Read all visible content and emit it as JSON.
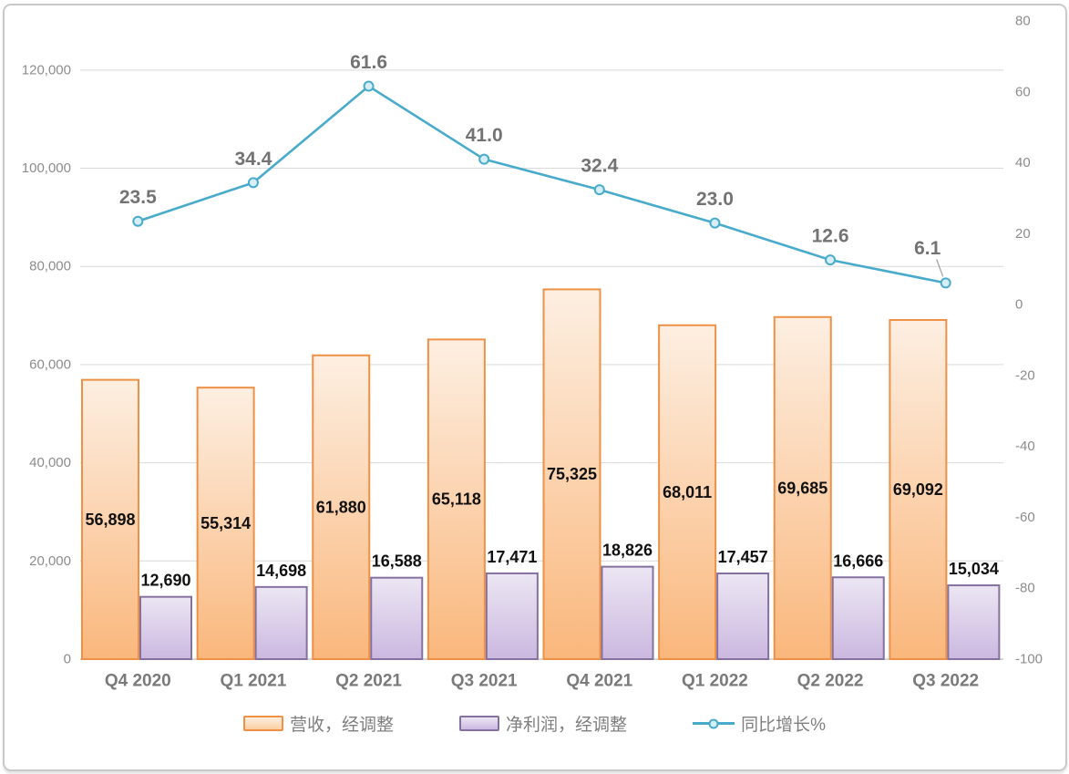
{
  "chart_data": {
    "type": "combo",
    "title": "",
    "categories": [
      "Q4 2020",
      "Q1 2021",
      "Q2 2021",
      "Q3 2021",
      "Q4 2021",
      "Q1 2022",
      "Q2 2022",
      "Q3 2022"
    ],
    "series": [
      {
        "name": "营收，经调整",
        "type": "bar",
        "axis": "left",
        "values": [
          56898,
          55314,
          61880,
          65118,
          75325,
          68011,
          69685,
          69092
        ],
        "labels": [
          "56,898",
          "55,314",
          "61,880",
          "65,118",
          "75,325",
          "68,011",
          "69,685",
          "69,092"
        ],
        "label_position": "center"
      },
      {
        "name": "净利润，经调整",
        "type": "bar",
        "axis": "left",
        "values": [
          12690,
          14698,
          16588,
          17471,
          18826,
          17457,
          16666,
          15034
        ],
        "labels": [
          "12,690",
          "14,698",
          "16,588",
          "17,471",
          "18,826",
          "17,457",
          "16,666",
          "15,034"
        ],
        "label_position": "outside-end"
      },
      {
        "name": "同比增长%",
        "type": "line",
        "axis": "right",
        "values": [
          23.5,
          34.4,
          61.6,
          41.0,
          32.4,
          23.0,
          12.6,
          6.1
        ],
        "labels": [
          "23.5",
          "34.4",
          "61.6",
          "41.0",
          "32.4",
          "23.0",
          "12.6",
          "6.1"
        ],
        "label_position": "above",
        "last_label_leader": true
      }
    ],
    "left_axis": {
      "min": 0,
      "max": 130000,
      "ticks": [
        {
          "v": 0,
          "label": "0"
        },
        {
          "v": 20000,
          "label": "20,000"
        },
        {
          "v": 40000,
          "label": "40,000"
        },
        {
          "v": 60000,
          "label": "60,000"
        },
        {
          "v": 80000,
          "label": "80,000"
        },
        {
          "v": 100000,
          "label": "100,000"
        },
        {
          "v": 120000,
          "label": "120,000"
        }
      ]
    },
    "right_axis": {
      "min": -100,
      "max": 80,
      "ticks": [
        {
          "v": 80,
          "label": "80"
        },
        {
          "v": 60,
          "label": "60"
        },
        {
          "v": 40,
          "label": "40"
        },
        {
          "v": 20,
          "label": "20"
        },
        {
          "v": 0,
          "label": "0"
        },
        {
          "v": -20,
          "label": "-20"
        },
        {
          "v": -40,
          "label": "-40"
        },
        {
          "v": -60,
          "label": "-60"
        },
        {
          "v": -80,
          "label": "-80"
        },
        {
          "v": -100,
          "label": "-100"
        }
      ]
    },
    "grid": true,
    "legend_position": "bottom",
    "colors": {
      "revenue_fill_top": "#FDEFE2",
      "revenue_fill_mid": "#FBCFA2",
      "revenue_fill_bottom": "#FAB77C",
      "revenue_border": "#EE9146",
      "profit_fill_top": "#ECE6F3",
      "profit_fill_bottom": "#CBB8E0",
      "profit_border": "#85719F",
      "line": "#48ABCB",
      "marker_fill": "#D6EEF8",
      "gridline": "#D9D9D9",
      "axis_line": "#BFBFBF",
      "tick_label": "#8C8C8C",
      "category_label": "#7A7A7A",
      "bar_label": "#111111",
      "line_label": "#737373",
      "legend_label": "#7F7F7F",
      "leader": "#A6A6A6",
      "frame_border": "#C9C9C9"
    }
  }
}
